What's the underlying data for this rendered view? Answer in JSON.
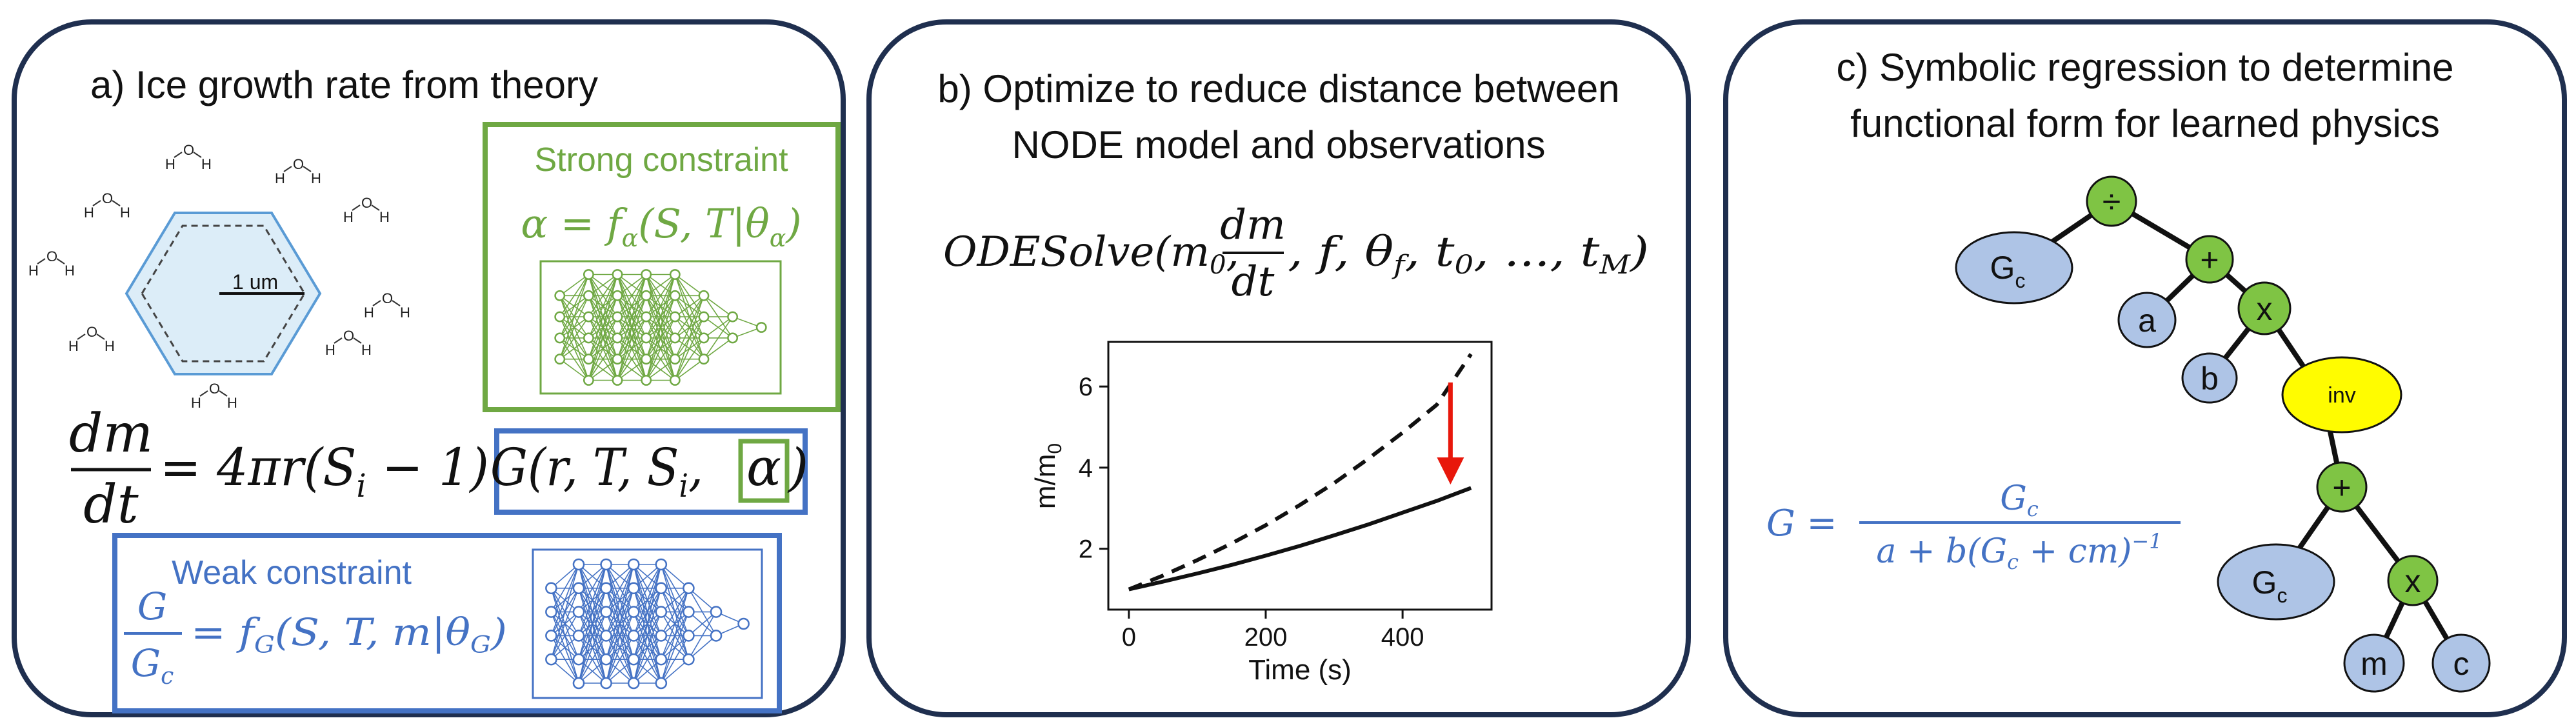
{
  "colors": {
    "panel_border": "#1f2f4f",
    "green": "#6fa843",
    "blue": "#4472c4",
    "node_blue": "#aec4e6",
    "node_green": "#7fc444",
    "node_yellow": "#fffc00",
    "red_arrow": "#e8170b",
    "hexagon_fill": "#dcedf8",
    "hexagon_stroke": "#5a9bd5"
  },
  "panel_a": {
    "title": "a) Ice growth rate from theory",
    "scale_label": "1 um",
    "molecule_labels": {
      "oxygen": "O",
      "hydrogen": "H"
    },
    "strong_constraint": {
      "title": "Strong constraint",
      "equation_lhs": "α = f",
      "equation_sub": "α",
      "equation_args": "(S, T|θ",
      "equation_arg_sub": "α",
      "equation_close": ")"
    },
    "main_equation": {
      "numerator": "dm",
      "denominator": "dt",
      "middle": "= 4πr(S",
      "middle_sub": "i",
      "middle_rest": " − 1)",
      "g_part": "G(r, T, S",
      "g_sub": "i",
      "g_comma": ", ",
      "alpha": "α",
      "close": ")"
    },
    "weak_constraint": {
      "title": "Weak constraint",
      "frac_num": "G",
      "frac_den": "G",
      "frac_den_sub": "c",
      "rhs": "= f",
      "rhs_sub": "G",
      "rhs_args": "(S, T, m|θ",
      "rhs_arg_sub": "G",
      "rhs_close": ")"
    }
  },
  "panel_b": {
    "title_line1": "b) Optimize to reduce distance between",
    "title_line2": "NODE model and observations",
    "equation": {
      "start": "ODESolve(m",
      "sub0": "0",
      "comma": ", ",
      "frac_num": "dm",
      "frac_den": "dt",
      "middle": ", f, θ",
      "sub_f": "f",
      "middle2": ", t",
      "sub_t0": "0",
      "end": ", ..., t",
      "sub_tm": "M",
      "close": ")"
    }
  },
  "chart_data": {
    "type": "line",
    "xlabel": "Time (s)",
    "ylabel": "m/m",
    "ylabel_sub": "0",
    "xlim": [
      -30,
      530
    ],
    "ylim": [
      0.5,
      7.1
    ],
    "xticks": [
      0,
      200,
      400
    ],
    "yticks": [
      2,
      4,
      6
    ],
    "series": [
      {
        "style": "dashed",
        "x": [
          0,
          50,
          100,
          150,
          200,
          250,
          300,
          350,
          400,
          450,
          500
        ],
        "y": [
          1.0,
          1.34,
          1.72,
          2.13,
          2.58,
          3.08,
          3.62,
          4.22,
          4.86,
          5.55,
          6.8
        ]
      },
      {
        "style": "solid",
        "x": [
          0,
          50,
          100,
          150,
          200,
          250,
          300,
          350,
          400,
          450,
          500
        ],
        "y": [
          1.0,
          1.19,
          1.39,
          1.6,
          1.83,
          2.07,
          2.33,
          2.6,
          2.89,
          3.18,
          3.5
        ]
      }
    ],
    "annotation": {
      "type": "arrow",
      "x": 470,
      "y_start": 6.1,
      "y_end": 3.6,
      "color": "#e8170b"
    }
  },
  "panel_c": {
    "title_line1": "c) Symbolic regression to determine",
    "title_line2": "functional form for learned physics",
    "equation": {
      "lhs": "G =",
      "num": "G",
      "num_sub": "c",
      "den": "a + b(G",
      "den_sub": "c",
      "den_rest": " + cm)",
      "den_sup": "−1"
    },
    "tree": {
      "div": "÷",
      "gc": "G",
      "gc_sub": "c",
      "plus1": "+",
      "a": "a",
      "times1": "x",
      "b": "b",
      "inv": "inv",
      "plus2": "+",
      "gc2": "G",
      "gc2_sub": "c",
      "times2": "x",
      "m": "m",
      "c": "c"
    }
  }
}
